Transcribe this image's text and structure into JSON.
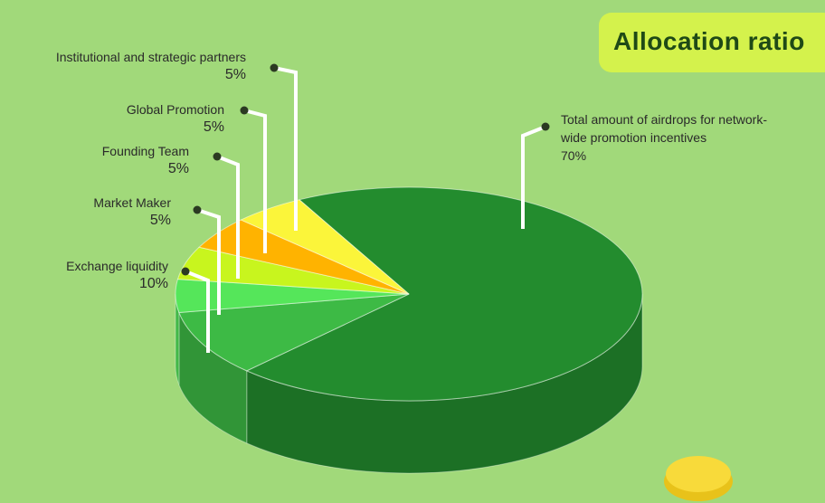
{
  "chart_data": {
    "type": "pie",
    "title": "Allocation ratio",
    "categories": [
      "Total amount of airdrops for network-wide promotion incentives",
      "Exchange liquidity",
      "Market Maker",
      "Founding Team",
      "Global Promotion",
      "Institutional and strategic partners"
    ],
    "values": [
      70,
      10,
      5,
      5,
      5,
      5
    ],
    "value_labels": [
      "70%",
      "10%",
      "5%",
      "5%",
      "5%",
      "5%"
    ],
    "colors": [
      "#238c2e",
      "#3dba45",
      "#55e65a",
      "#c8f51e",
      "#ffb300",
      "#fbf53a"
    ]
  }
}
